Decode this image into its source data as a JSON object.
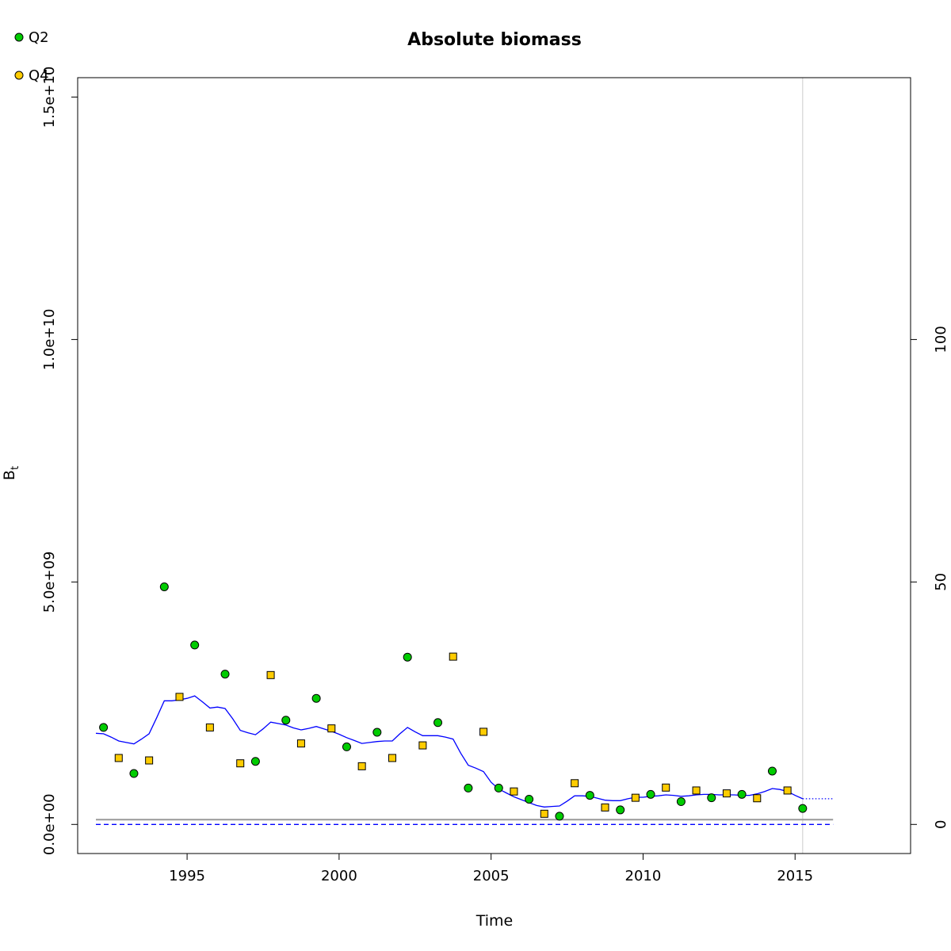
{
  "chart_data": {
    "type": "scatter",
    "title": "Absolute biomass",
    "xlabel": "Time",
    "ylabel": "B",
    "ylabel_subscript": "t",
    "xlim": [
      1991.4,
      2018.8
    ],
    "ylim": [
      -600000000,
      15400000000
    ],
    "y2lim": [
      -6,
      154
    ],
    "x_ticks": [
      1995,
      2000,
      2005,
      2010,
      2015
    ],
    "x_tick_labels": [
      "1995",
      "2000",
      "2005",
      "2010",
      "2015"
    ],
    "y_ticks": [
      0,
      5000000000,
      10000000000,
      15000000000
    ],
    "y_tick_labels": [
      "0.0e+00",
      "5.0e+09",
      "1.0e+10",
      "1.5e+10"
    ],
    "y2_ticks": [
      0,
      50,
      100
    ],
    "y2_tick_labels": [
      "0",
      "50",
      "100"
    ],
    "grid": false,
    "legend_position": "top-left",
    "colors": {
      "q2": "#00cc00",
      "q4": "#ffcc00",
      "biomass_line": "#0000ff",
      "reference_line": "#999999",
      "zero_line": "#0000ff",
      "vline": "#cccccc"
    },
    "series": [
      {
        "name": "Q2",
        "marker": "circle",
        "x": [
          1992.25,
          1993.25,
          1994.25,
          1995.25,
          1996.25,
          1997.25,
          1998.25,
          1999.25,
          2000.25,
          2001.25,
          2002.25,
          2003.25,
          2004.25,
          2005.25,
          2006.25,
          2007.25,
          2008.25,
          2009.25,
          2010.25,
          2011.25,
          2012.25,
          2013.25,
          2014.25,
          2015.25
        ],
        "y": [
          2000000000,
          1050000000,
          4900000000,
          3700000000,
          3100000000,
          1300000000,
          2150000000,
          2600000000,
          1600000000,
          1900000000,
          3450000000,
          2100000000,
          750000000,
          750000000,
          520000000,
          170000000,
          600000000,
          300000000,
          620000000,
          470000000,
          550000000,
          620000000,
          1100000000,
          330000000
        ]
      },
      {
        "name": "Q4",
        "marker": "square",
        "x": [
          1992.75,
          1993.75,
          1994.75,
          1995.75,
          1996.75,
          1997.75,
          1998.75,
          1999.75,
          2000.75,
          2001.75,
          2002.75,
          2003.75,
          2004.75,
          2005.75,
          2006.75,
          2007.75,
          2008.75,
          2009.75,
          2010.75,
          2011.75,
          2012.75,
          2013.75,
          2014.75
        ],
        "y": [
          1370000000,
          1320000000,
          2630000000,
          2000000000,
          1260000000,
          3080000000,
          1670000000,
          1980000000,
          1200000000,
          1370000000,
          1630000000,
          3460000000,
          1910000000,
          680000000,
          220000000,
          850000000,
          350000000,
          550000000,
          760000000,
          700000000,
          640000000,
          540000000,
          700000000
        ]
      },
      {
        "name": "",
        "role": "estimated-biomass",
        "style": "line",
        "x": [
          1992.0,
          1992.25,
          1992.5,
          1992.75,
          1993.0,
          1993.25,
          1993.5,
          1993.75,
          1994.0,
          1994.25,
          1994.5,
          1994.75,
          1995.0,
          1995.25,
          1995.5,
          1995.75,
          1996.0,
          1996.25,
          1996.5,
          1996.75,
          1997.0,
          1997.25,
          1997.5,
          1997.75,
          1998.0,
          1998.25,
          1998.5,
          1998.75,
          1999.0,
          1999.25,
          1999.5,
          1999.75,
          2000.0,
          2000.25,
          2000.5,
          2000.75,
          2001.0,
          2001.25,
          2001.5,
          2001.75,
          2002.0,
          2002.25,
          2002.5,
          2002.75,
          2003.0,
          2003.25,
          2003.5,
          2003.75,
          2004.0,
          2004.25,
          2004.5,
          2004.75,
          2005.0,
          2005.25,
          2005.5,
          2005.75,
          2006.0,
          2006.25,
          2006.5,
          2006.75,
          2007.0,
          2007.25,
          2007.5,
          2007.75,
          2008.0,
          2008.25,
          2008.5,
          2008.75,
          2009.0,
          2009.25,
          2009.5,
          2009.75,
          2010.0,
          2010.25,
          2010.5,
          2010.75,
          2011.0,
          2011.25,
          2011.5,
          2011.75,
          2012.0,
          2012.25,
          2012.5,
          2012.75,
          2013.0,
          2013.25,
          2013.5,
          2013.75,
          2014.0,
          2014.25,
          2014.5,
          2014.75,
          2015.0,
          2015.25
        ],
        "y": [
          1880000000,
          1870000000,
          1800000000,
          1720000000,
          1690000000,
          1660000000,
          1760000000,
          1870000000,
          2200000000,
          2550000000,
          2550000000,
          2570000000,
          2600000000,
          2650000000,
          2530000000,
          2400000000,
          2420000000,
          2390000000,
          2180000000,
          1940000000,
          1890000000,
          1850000000,
          1970000000,
          2110000000,
          2080000000,
          2050000000,
          1990000000,
          1950000000,
          1980000000,
          2020000000,
          1970000000,
          1920000000,
          1860000000,
          1790000000,
          1730000000,
          1670000000,
          1690000000,
          1710000000,
          1720000000,
          1720000000,
          1870000000,
          2000000000,
          1910000000,
          1830000000,
          1830000000,
          1830000000,
          1800000000,
          1760000000,
          1470000000,
          1220000000,
          1160000000,
          1090000000,
          870000000,
          730000000,
          650000000,
          570000000,
          510000000,
          450000000,
          390000000,
          360000000,
          370000000,
          380000000,
          480000000,
          590000000,
          590000000,
          580000000,
          540000000,
          500000000,
          490000000,
          490000000,
          530000000,
          560000000,
          560000000,
          580000000,
          590000000,
          610000000,
          600000000,
          580000000,
          590000000,
          610000000,
          620000000,
          620000000,
          610000000,
          610000000,
          610000000,
          600000000,
          600000000,
          630000000,
          680000000,
          740000000,
          720000000,
          680000000,
          600000000,
          530000000
        ]
      },
      {
        "name": "",
        "role": "forecast",
        "style": "dotted",
        "x": [
          2015.25,
          2016.25
        ],
        "y": [
          530000000,
          530000000
        ]
      },
      {
        "name": "",
        "role": "reference-level",
        "style": "line",
        "x": [
          1992.0,
          2016.25
        ],
        "y": [
          100000000,
          100000000
        ]
      },
      {
        "name": "",
        "role": "zero-level",
        "style": "dashed",
        "x": [
          1992.0,
          2016.25
        ],
        "y": [
          0,
          0
        ]
      }
    ],
    "vlines": [
      2015.25
    ],
    "annotations": []
  }
}
